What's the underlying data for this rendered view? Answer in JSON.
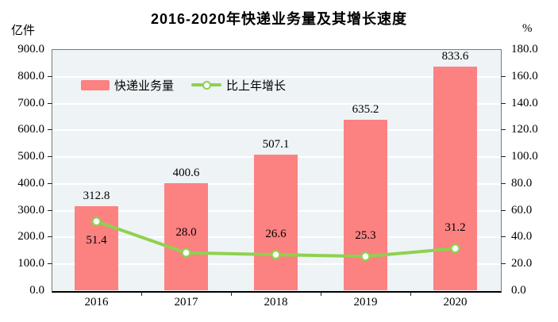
{
  "title": "2016-2020年快递业务量及其增长速度",
  "legend": [
    {
      "label": "快递业务量",
      "type": "bar",
      "color": "#FC8181"
    },
    {
      "label": "比上年增长",
      "type": "line",
      "color": "#8FD14F"
    }
  ],
  "chart_data": {
    "type": "bar+line",
    "title": "2016-2020年快递业务量及其增长速度",
    "categories": [
      "2016",
      "2017",
      "2018",
      "2019",
      "2020"
    ],
    "series": [
      {
        "name": "快递业务量",
        "type": "bar",
        "axis": "left",
        "values": [
          312.8,
          400.6,
          507.1,
          635.2,
          833.6
        ],
        "color": "#FC8181"
      },
      {
        "name": "比上年增长",
        "type": "line",
        "axis": "right",
        "values": [
          51.4,
          28.0,
          26.6,
          25.3,
          31.2
        ],
        "color": "#8FD14F",
        "marker": "open-circle",
        "marker_fill": "#ffffff"
      }
    ],
    "left_axis": {
      "unit": "亿件",
      "min": 0,
      "max": 900,
      "step": 100,
      "ticks": [
        "900.0",
        "800.0",
        "700.0",
        "600.0",
        "500.0",
        "400.0",
        "300.0",
        "200.0",
        "100.0",
        "0.0"
      ]
    },
    "right_axis": {
      "unit": "%",
      "min": 0,
      "max": 180,
      "step": 20,
      "ticks": [
        "180.0",
        "160.0",
        "140.0",
        "120.0",
        "100.0",
        "80.0",
        "60.0",
        "40.0",
        "20.0",
        "0.0"
      ]
    },
    "grid": true,
    "plot_bg": "#EEF3F6",
    "grid_color": "#FFFFFF",
    "legend_position": "inside-top-left",
    "line_label_sides": [
      "below",
      "above",
      "above",
      "above",
      "above"
    ]
  }
}
